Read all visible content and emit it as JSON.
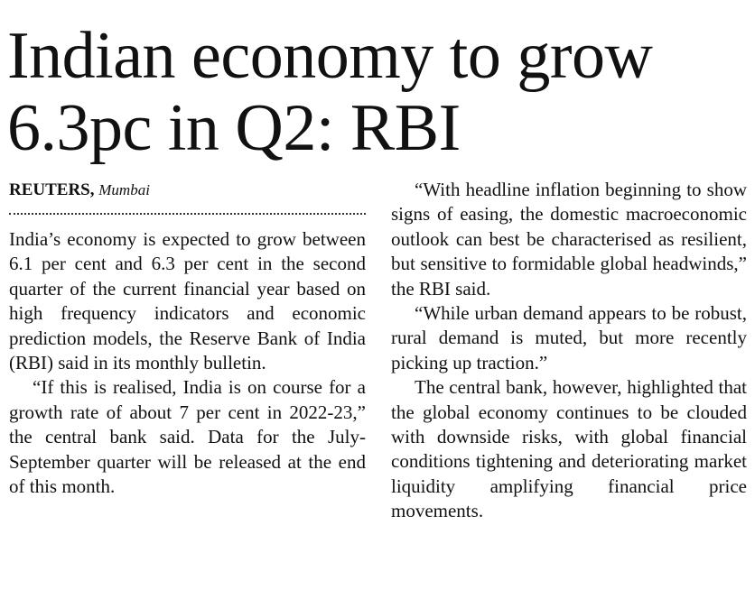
{
  "headline": [
    "Indian economy to grow",
    "6.3pc in Q2: RBI"
  ],
  "byline": {
    "agency": "REUTERS,",
    "location": "Mumbai"
  },
  "columns": [
    [
      "India’s economy is expected to grow between 6.1 per cent and 6.3 per cent in the second quarter of the current financial year based on high frequency indicators and economic prediction models, the Reserve Bank of India (RBI) said in its monthly bulletin.",
      "“If this is realised, India is on course for a growth rate of about 7 per cent in 2022-23,” the central bank said. Data for the July-September quarter will be released at the end of this month."
    ],
    [
      "“With headline inflation beginning to show signs of easing, the domestic macroeconomic outlook can best be characterised as resilient, but sensitive to formidable global headwinds,” the RBI said.",
      "“While urban demand appears to be robust, rural demand is muted, but more recently picking up traction.”",
      "The central bank, however, highlighted that the global economy continues to be clouded with downside risks, with global financial conditions tightening and deteriorating market liquidity amplifying financial price movements."
    ]
  ]
}
